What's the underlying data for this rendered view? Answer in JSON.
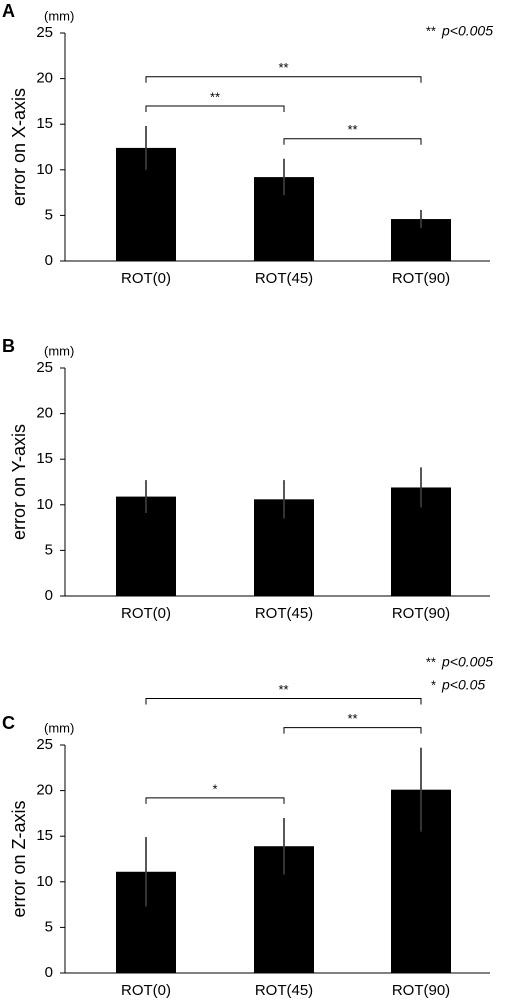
{
  "chart_data": [
    {
      "type": "bar",
      "panel": "A",
      "unit": "(mm)",
      "y_label": "error on X-axis",
      "categories": [
        "ROT(0)",
        "ROT(45)",
        "ROT(90)"
      ],
      "values": [
        12.4,
        9.2,
        4.6
      ],
      "errors": [
        2.4,
        2.0,
        1.0
      ],
      "color": "#000000",
      "ylim": [
        0,
        25
      ],
      "yticks": [
        0,
        5,
        10,
        15,
        20,
        25
      ],
      "brackets": [
        {
          "from": "ROT(0)",
          "to": "ROT(45)",
          "label": "**"
        },
        {
          "from": "ROT(45)",
          "to": "ROT(90)",
          "label": "**"
        },
        {
          "from": "ROT(0)",
          "to": "ROT(90)",
          "label": "**"
        }
      ],
      "notes": [
        {
          "mark": "**",
          "text": "p<0.005"
        }
      ]
    },
    {
      "type": "bar",
      "panel": "B",
      "unit": "(mm)",
      "y_label": "error on Y-axis",
      "categories": [
        "ROT(0)",
        "ROT(45)",
        "ROT(90)"
      ],
      "values": [
        10.9,
        10.6,
        11.9
      ],
      "errors": [
        1.8,
        2.1,
        2.2
      ],
      "color": "#000000",
      "ylim": [
        0,
        25
      ],
      "yticks": [
        0,
        5,
        10,
        15,
        20,
        25
      ],
      "brackets": [],
      "notes": []
    },
    {
      "type": "bar",
      "panel": "C",
      "unit": "(mm)",
      "y_label": "error on Z-axis",
      "categories": [
        "ROT(0)",
        "ROT(45)",
        "ROT(90)"
      ],
      "values": [
        11.1,
        13.9,
        20.1
      ],
      "errors": [
        3.8,
        3.1,
        4.6
      ],
      "color": "#000000",
      "ylim": [
        0,
        25
      ],
      "yticks": [
        0,
        5,
        10,
        15,
        20,
        25
      ],
      "brackets": [
        {
          "from": "ROT(0)",
          "to": "ROT(45)",
          "label": "*"
        },
        {
          "from": "ROT(45)",
          "to": "ROT(90)",
          "label": "**"
        },
        {
          "from": "ROT(0)",
          "to": "ROT(90)",
          "label": "**"
        }
      ],
      "notes": [
        {
          "mark": "**",
          "text": "p<0.005"
        },
        {
          "mark": "*",
          "text": "p<0.05"
        }
      ]
    }
  ]
}
